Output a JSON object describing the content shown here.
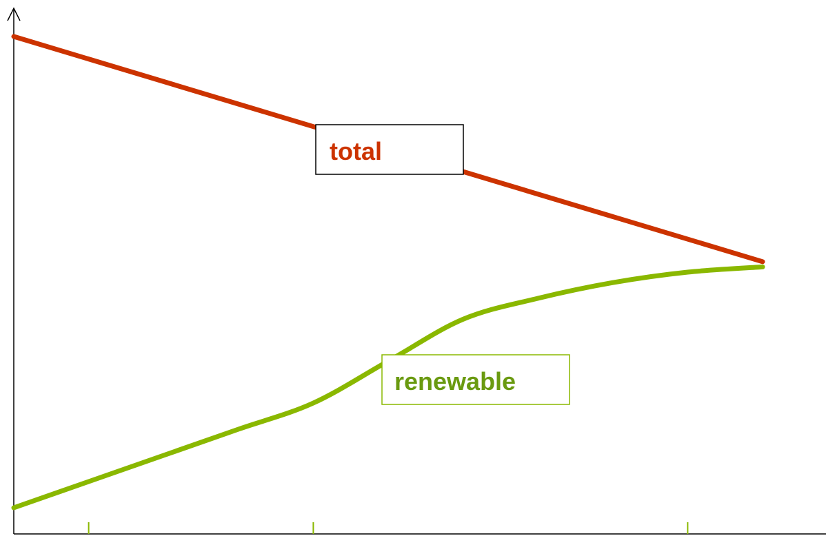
{
  "chart_data": {
    "type": "line",
    "title": "",
    "xlabel": "",
    "ylabel": "",
    "xlim": [
      0,
      1
    ],
    "ylim": [
      0,
      1
    ],
    "grid": false,
    "legend": "none",
    "x_ticks": [
      0.1,
      0.4,
      0.9
    ],
    "series": [
      {
        "name": "total",
        "color": "#cc3300",
        "x": [
          0,
          1
        ],
        "y": [
          0.95,
          0.52
        ]
      },
      {
        "name": "renewable",
        "color": "#8ab800",
        "x": [
          0,
          0.1,
          0.2,
          0.3,
          0.4,
          0.5,
          0.6,
          0.7,
          0.8,
          0.9,
          1.0
        ],
        "y": [
          0.05,
          0.1,
          0.15,
          0.2,
          0.25,
          0.33,
          0.41,
          0.45,
          0.48,
          0.5,
          0.51
        ]
      }
    ],
    "annotations": [
      {
        "series": "total",
        "text": "total",
        "text_color": "#cc3300",
        "border_color": "#000000"
      },
      {
        "series": "renewable",
        "text": "renewable",
        "text_color": "#6a9a10",
        "border_color": "#8ab800"
      }
    ],
    "axis_color": "#000000",
    "tick_color": "#8ab800"
  }
}
